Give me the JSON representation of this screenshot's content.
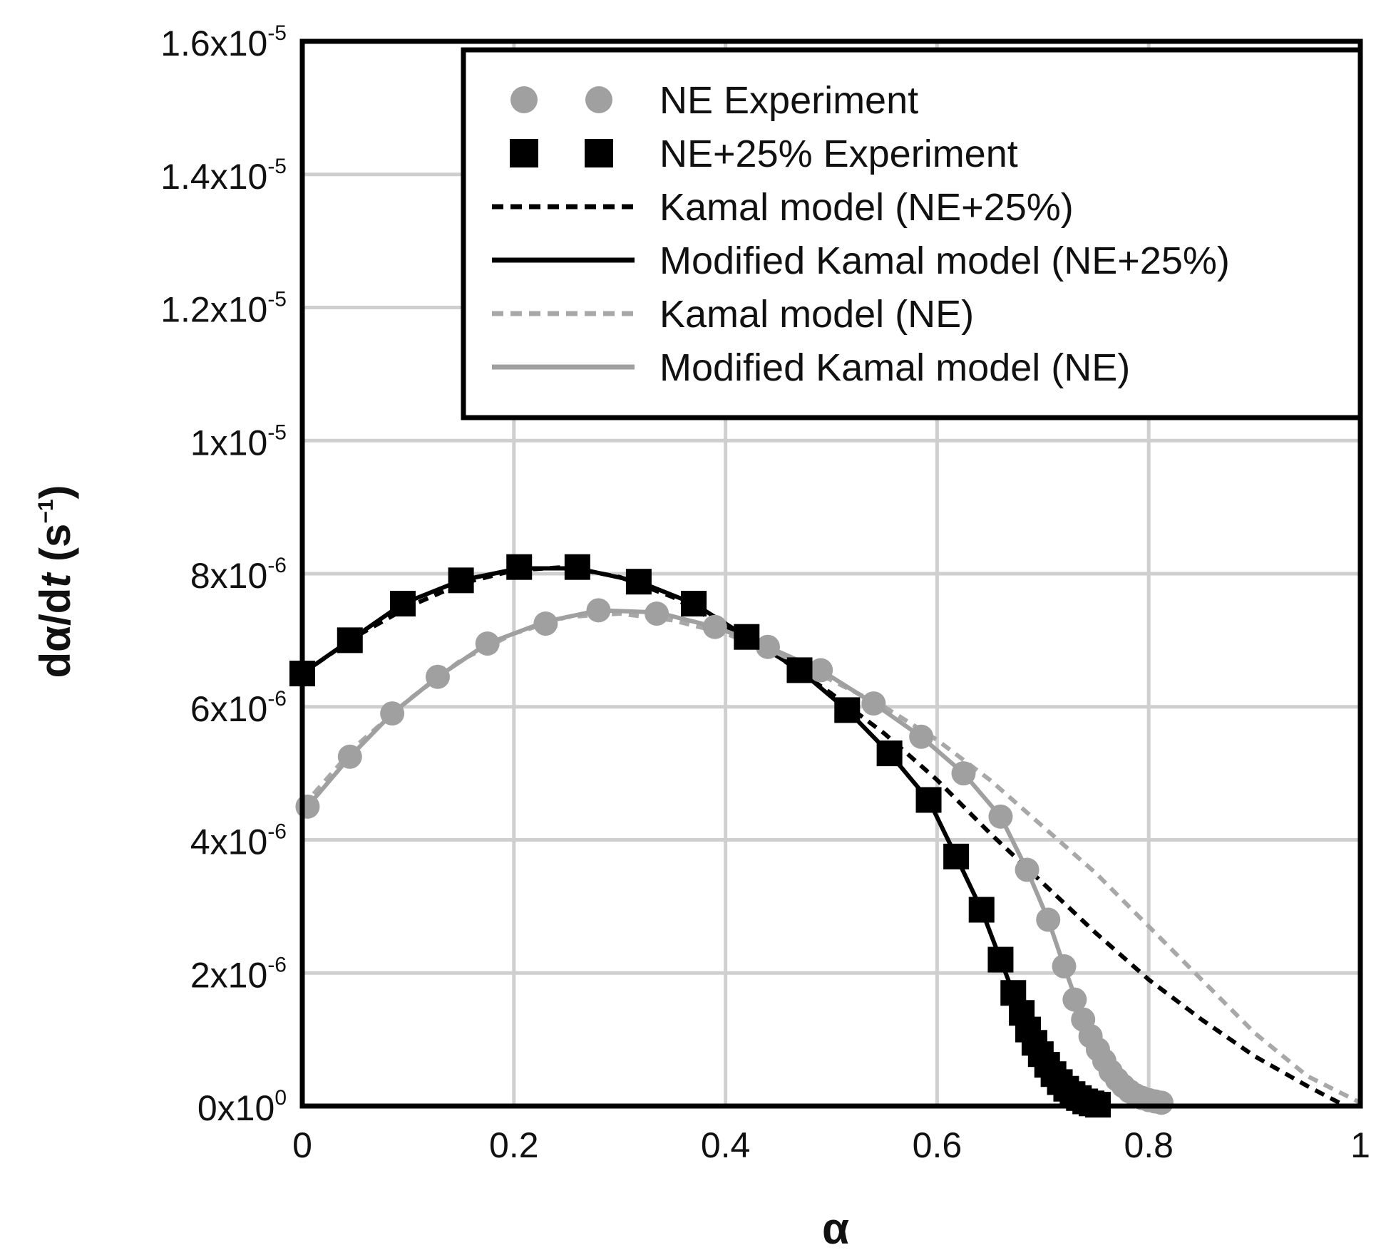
{
  "chart_data": {
    "type": "scatter",
    "title": "",
    "xlabel": "α",
    "ylabel": {
      "prefix": "dα/d",
      "italic": "t",
      "unit_open": " (s",
      "unit_sup": "−1",
      "unit_close": ")"
    },
    "xlim": [
      0,
      1
    ],
    "ylim": [
      0,
      1.6e-05
    ],
    "grid": true,
    "legend_position": "top-right",
    "x_ticks": [
      {
        "value": 0,
        "label": "0"
      },
      {
        "value": 0.2,
        "label": "0.2"
      },
      {
        "value": 0.4,
        "label": "0.4"
      },
      {
        "value": 0.6,
        "label": "0.6"
      },
      {
        "value": 0.8,
        "label": "0.8"
      },
      {
        "value": 1,
        "label": "1"
      }
    ],
    "y_ticks": [
      {
        "value": 0,
        "base": "0x10",
        "exp": "0"
      },
      {
        "value": 2e-06,
        "base": "2x10",
        "exp": "-6"
      },
      {
        "value": 4e-06,
        "base": "4x10",
        "exp": "-6"
      },
      {
        "value": 6e-06,
        "base": "6x10",
        "exp": "-6"
      },
      {
        "value": 8e-06,
        "base": "8x10",
        "exp": "-6"
      },
      {
        "value": 1e-05,
        "base": "1x10",
        "exp": "-5"
      },
      {
        "value": 1.2e-05,
        "base": "1.2x10",
        "exp": "-5"
      },
      {
        "value": 1.4e-05,
        "base": "1.4x10",
        "exp": "-5"
      },
      {
        "value": 1.6e-05,
        "base": "1.6x10",
        "exp": "-5"
      }
    ],
    "series": [
      {
        "name": "NE Experiment",
        "kind": "circle",
        "color": "#a0a0a0",
        "x": [
          0.005,
          0.045,
          0.085,
          0.128,
          0.175,
          0.23,
          0.28,
          0.335,
          0.39,
          0.44,
          0.49,
          0.54,
          0.585,
          0.625,
          0.66,
          0.685,
          0.705,
          0.72,
          0.73,
          0.738,
          0.745,
          0.752,
          0.758,
          0.764,
          0.77,
          0.776,
          0.782,
          0.788,
          0.794,
          0.8,
          0.806,
          0.812
        ],
        "y": [
          4.5e-06,
          5.25e-06,
          5.9e-06,
          6.45e-06,
          6.95e-06,
          7.25e-06,
          7.45e-06,
          7.4e-06,
          7.2e-06,
          6.9e-06,
          6.55e-06,
          6.05e-06,
          5.55e-06,
          5e-06,
          4.35e-06,
          3.55e-06,
          2.8e-06,
          2.1e-06,
          1.6e-06,
          1.3e-06,
          1.05e-06,
          8.5e-07,
          6.8e-07,
          5.2e-07,
          4e-07,
          3e-07,
          2.2e-07,
          1.6e-07,
          1.2e-07,
          9e-08,
          7e-08,
          5e-08
        ]
      },
      {
        "name": "NE+25% Experiment",
        "kind": "square",
        "color": "#000000",
        "x": [
          0.0,
          0.045,
          0.095,
          0.15,
          0.205,
          0.26,
          0.318,
          0.37,
          0.42,
          0.47,
          0.515,
          0.555,
          0.592,
          0.618,
          0.642,
          0.66,
          0.672,
          0.68,
          0.686,
          0.692,
          0.698,
          0.704,
          0.71,
          0.716,
          0.722,
          0.728,
          0.734,
          0.74,
          0.746,
          0.752
        ],
        "y": [
          6.5e-06,
          7e-06,
          7.55e-06,
          7.9e-06,
          8.1e-06,
          8.1e-06,
          7.88e-06,
          7.55e-06,
          7.05e-06,
          6.55e-06,
          5.95e-06,
          5.3e-06,
          4.6e-06,
          3.75e-06,
          2.95e-06,
          2.2e-06,
          1.7e-06,
          1.4e-06,
          1.15e-06,
          9.5e-07,
          7.8e-07,
          6.2e-07,
          4.8e-07,
          3.6e-07,
          2.6e-07,
          1.8e-07,
          1.2e-07,
          7e-08,
          4e-08,
          2e-08
        ]
      },
      {
        "name": "Kamal model (NE+25%)",
        "kind": "line",
        "dash": "dashed",
        "color": "#000000",
        "x": [
          0.0,
          0.05,
          0.1,
          0.15,
          0.2,
          0.25,
          0.3,
          0.35,
          0.4,
          0.45,
          0.5,
          0.55,
          0.6,
          0.65,
          0.7,
          0.75,
          0.8,
          0.85,
          0.9,
          0.95,
          0.98
        ],
        "y": [
          6.5e-06,
          7.05e-06,
          7.5e-06,
          7.85e-06,
          8.05e-06,
          8.1e-06,
          7.95e-06,
          7.65e-06,
          7.2e-06,
          6.75e-06,
          6.2e-06,
          5.6e-06,
          4.9e-06,
          4.1e-06,
          3.35e-06,
          2.6e-06,
          1.9e-06,
          1.3e-06,
          7.5e-07,
          3e-07,
          5e-08
        ]
      },
      {
        "name": "Modified Kamal model (NE+25%)",
        "kind": "line",
        "dash": "solid",
        "color": "#000000",
        "x": [
          0.0,
          0.045,
          0.095,
          0.15,
          0.205,
          0.26,
          0.318,
          0.37,
          0.42,
          0.47,
          0.515,
          0.555,
          0.592,
          0.618,
          0.642,
          0.66,
          0.672,
          0.686,
          0.698,
          0.71,
          0.722,
          0.734,
          0.746,
          0.752
        ],
        "y": [
          6.5e-06,
          7e-06,
          7.55e-06,
          7.9e-06,
          8.08e-06,
          8.08e-06,
          7.88e-06,
          7.55e-06,
          7.05e-06,
          6.55e-06,
          5.95e-06,
          5.3e-06,
          4.6e-06,
          3.75e-06,
          2.95e-06,
          2.2e-06,
          1.7e-06,
          1.15e-06,
          7.8e-07,
          4.8e-07,
          2.6e-07,
          1.2e-07,
          4e-08,
          2e-08
        ]
      },
      {
        "name": "Kamal model (NE)",
        "kind": "line",
        "dash": "dashed",
        "color": "#a8a8a8",
        "x": [
          0.0,
          0.05,
          0.1,
          0.15,
          0.2,
          0.25,
          0.3,
          0.35,
          0.4,
          0.45,
          0.5,
          0.55,
          0.6,
          0.65,
          0.7,
          0.75,
          0.8,
          0.85,
          0.9,
          0.95,
          1.0
        ],
        "y": [
          4.5e-06,
          5.4e-06,
          6.1e-06,
          6.7e-06,
          7.1e-06,
          7.35e-06,
          7.4e-06,
          7.3e-06,
          7.1e-06,
          6.8e-06,
          6.4e-06,
          6e-06,
          5.5e-06,
          4.9e-06,
          4.2e-06,
          3.5e-06,
          2.7e-06,
          1.9e-06,
          1.1e-06,
          4.5e-07,
          5e-08
        ]
      },
      {
        "name": "Modified Kamal model (NE)",
        "kind": "line",
        "dash": "solid",
        "color": "#a0a0a0",
        "x": [
          0.005,
          0.045,
          0.085,
          0.128,
          0.175,
          0.23,
          0.28,
          0.335,
          0.39,
          0.44,
          0.49,
          0.54,
          0.585,
          0.625,
          0.66,
          0.685,
          0.705,
          0.72,
          0.738,
          0.752,
          0.764,
          0.776,
          0.788,
          0.8,
          0.812
        ],
        "y": [
          4.5e-06,
          5.25e-06,
          5.9e-06,
          6.45e-06,
          6.95e-06,
          7.28e-06,
          7.45e-06,
          7.42e-06,
          7.2e-06,
          6.9e-06,
          6.55e-06,
          6.05e-06,
          5.55e-06,
          5e-06,
          4.35e-06,
          3.55e-06,
          2.8e-06,
          2.1e-06,
          1.3e-06,
          8.5e-07,
          5.2e-07,
          3e-07,
          1.6e-07,
          9e-08,
          5e-08
        ]
      }
    ]
  }
}
